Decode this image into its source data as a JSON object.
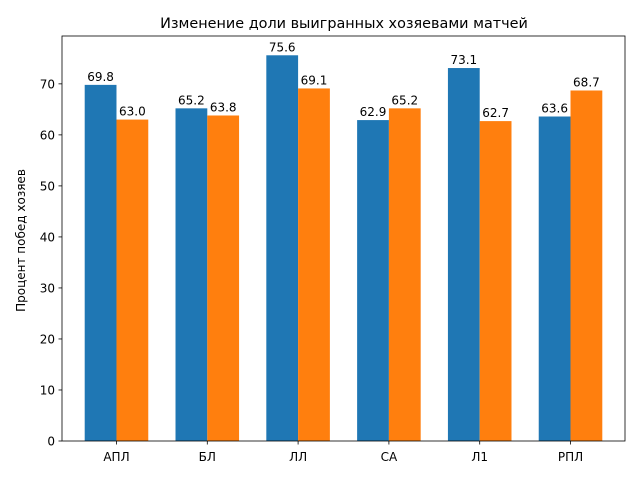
{
  "chart_data": {
    "type": "bar",
    "title": "Изменение доли выигранных хозяевами матчей",
    "xlabel": "",
    "ylabel": "Процент побед хозяев",
    "categories": [
      "АПЛ",
      "БЛ",
      "ЛЛ",
      "СА",
      "Л1",
      "РПЛ"
    ],
    "series": [
      {
        "values": [
          69.8,
          65.2,
          75.6,
          62.9,
          73.1,
          63.6
        ],
        "color": "#1f77b4"
      },
      {
        "values": [
          63.0,
          63.8,
          69.1,
          65.2,
          62.7,
          68.7
        ],
        "color": "#ff7f0e"
      }
    ],
    "yticks": [
      0,
      10,
      20,
      30,
      40,
      50,
      60,
      70
    ],
    "ylim": [
      0,
      79.38
    ],
    "grid": false,
    "legend": "none",
    "data_labels": true,
    "data_label_format": "one-decimal"
  }
}
